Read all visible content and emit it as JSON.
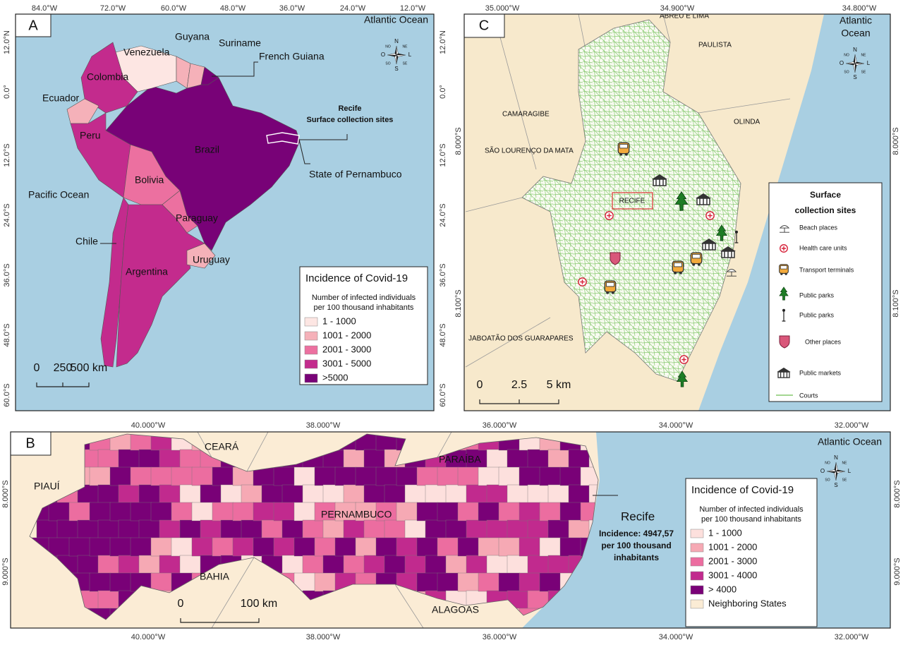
{
  "compass": [
    "N",
    "S",
    "L",
    "O",
    "NO",
    "NE",
    "SO",
    "SE"
  ],
  "panel_a": {
    "label": "A",
    "lon_ticks": [
      "84.0°W",
      "72.0°W",
      "60.0°W",
      "48.0°W",
      "36.0°W",
      "24.0°W",
      "12.0°W"
    ],
    "lat_ticks": [
      "12.0°N",
      "0.0°",
      "12.0°S",
      "24.0°S",
      "36.0°S",
      "48.0°S",
      "60.0°S"
    ],
    "places": [
      "Atlantic Ocean",
      "Pacific Ocean",
      "Venezuela",
      "Guyana",
      "Suriname",
      "French Guiana",
      "Colombia",
      "Ecuador",
      "Peru",
      "Brazil",
      "Bolivia",
      "Paraguay",
      "Chile",
      "Argentina",
      "Uruguay"
    ],
    "annotations": [
      "Recife",
      "Surface collection sites",
      "State of Pernambuco"
    ],
    "legend": {
      "title": "Incidence of Covid-19",
      "subtitle": [
        "Number of infected individuals",
        "per 100 thousand inhabitants"
      ],
      "classes": [
        {
          "label": "1 - 1000",
          "color": "#fde6e3"
        },
        {
          "label": "1001 - 2000",
          "color": "#f5b1b9"
        },
        {
          "label": "2001 - 3000",
          "color": "#ec70a0"
        },
        {
          "label": "3001 - 5000",
          "color": "#c32b8d"
        },
        {
          "label": ">5000",
          "color": "#780277"
        }
      ]
    },
    "scale": [
      "0",
      "250",
      "500 km"
    ]
  },
  "panel_c": {
    "label": "C",
    "lon_ticks": [
      "35.000°W",
      "34.900°W",
      "34.800°W"
    ],
    "lat_ticks": [
      "8.000°S",
      "8.100°S"
    ],
    "places": [
      "ABREU E LIMA",
      "PAULISTA",
      "CAMARAGIBE",
      "OLINDA",
      "SÃO LOURENÇO DA MATA",
      "RECIFE",
      "JABOATÃO DOS GUARAPARES",
      "Atlantic",
      "Ocean"
    ],
    "legend": {
      "title": [
        "Surface",
        "collection sites"
      ],
      "items": [
        "Beach places",
        "Health care units",
        "Transport terminals",
        "Public parks",
        "Public parks",
        "Other places",
        "Public markets",
        "Courts"
      ]
    },
    "scale": [
      "0",
      "2.5",
      "5 km"
    ]
  },
  "panel_b": {
    "label": "B",
    "lon_ticks": [
      "40.000°W",
      "38.000°W",
      "36.000°W",
      "34.000°W",
      "32.000°W"
    ],
    "lat_ticks": [
      "8.000°S",
      "9.000°S"
    ],
    "places": [
      "Atlantic Ocean",
      "CEARÁ",
      "PARAÍBA",
      "PIAUÍ",
      "PERNAMBUCO",
      "BAHIA",
      "ALAGOAS"
    ],
    "annotations": [
      "Recife",
      "Incidence: 4947,57",
      "per 100 thousand",
      "inhabitants"
    ],
    "legend": {
      "title": "Incidence of Covid-19",
      "subtitle": [
        "Number of infected individuals",
        "per 100 thousand inhabitants"
      ],
      "classes": [
        {
          "label": "1 - 1000",
          "color": "#fde0dd"
        },
        {
          "label": "1001 - 2000",
          "color": "#f6a9b4"
        },
        {
          "label": "2001 - 3000",
          "color": "#ec6da0"
        },
        {
          "label": "3001 - 4000",
          "color": "#c12a8e"
        },
        {
          "label": "> 4000",
          "color": "#790177"
        },
        {
          "label": "Neighboring States",
          "color": "#fbecd5"
        }
      ]
    },
    "scale": [
      "0",
      "100 km"
    ]
  }
}
